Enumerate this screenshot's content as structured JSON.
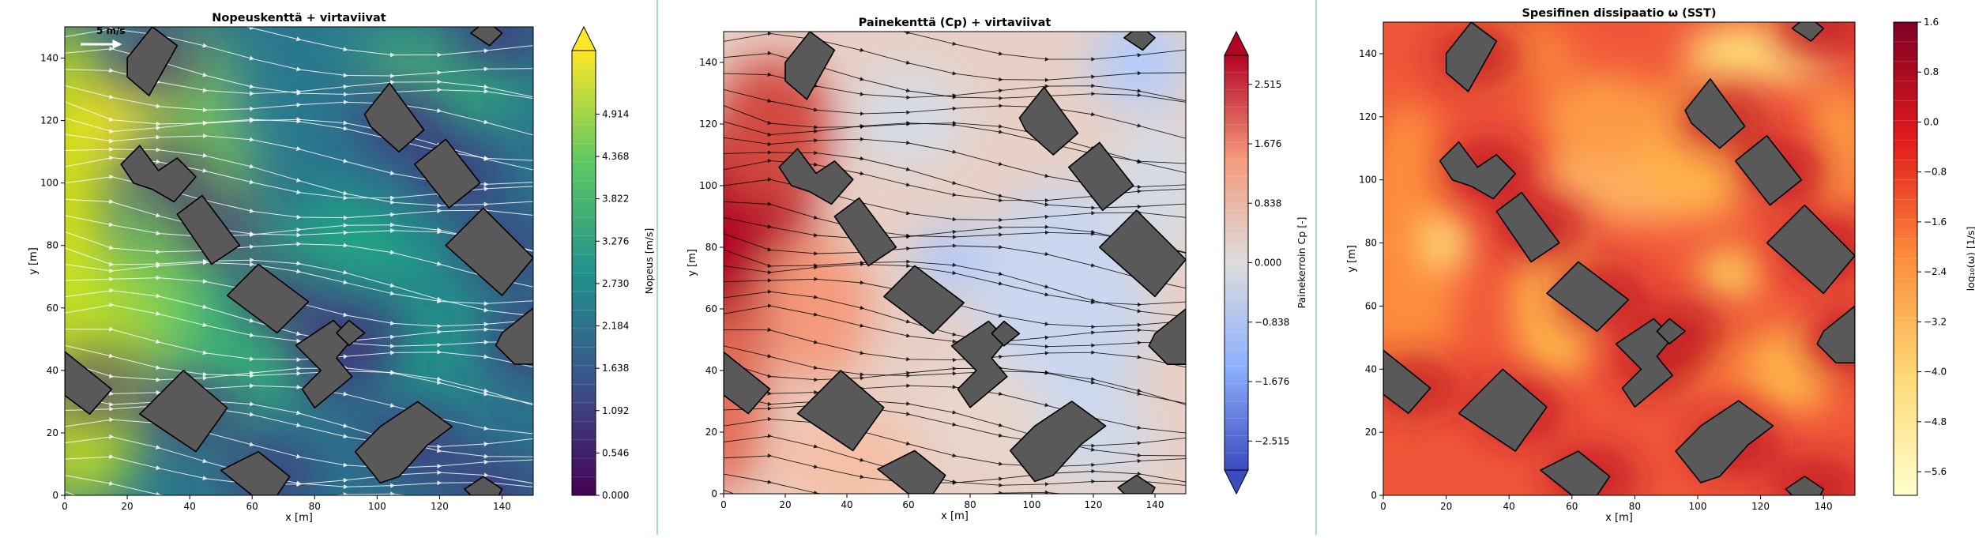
{
  "chart_data": [
    {
      "type": "heatmap",
      "title": "Nopeuskenttä + virtaviivat",
      "xlabel": "x [m]",
      "ylabel": "y [m]",
      "xlim": [
        0,
        150
      ],
      "ylim": [
        0,
        150
      ],
      "x_ticks": [
        0,
        20,
        40,
        60,
        80,
        100,
        120,
        140
      ],
      "y_ticks": [
        0,
        20,
        40,
        60,
        80,
        100,
        120,
        140
      ],
      "colormap": [
        "#440154",
        "#3b528b",
        "#21918c",
        "#5ec962",
        "#fde725"
      ],
      "colorbar_label": "Nopeus [m/s]",
      "colorbar_ticks": [
        "0.000",
        "0.546",
        "1.092",
        "1.638",
        "2.184",
        "2.730",
        "3.276",
        "3.822",
        "4.368",
        "4.914"
      ],
      "colorbar_extend": "max",
      "streamline_color": "#ffffff",
      "scale_arrow_label": "5 m/s"
    },
    {
      "type": "heatmap",
      "title": "Painekenttä (Cp) + virtaviivat",
      "xlabel": "x [m]",
      "ylabel": "y [m]",
      "xlim": [
        0,
        150
      ],
      "ylim": [
        0,
        150
      ],
      "x_ticks": [
        0,
        20,
        40,
        60,
        80,
        100,
        120,
        140
      ],
      "y_ticks": [
        0,
        20,
        40,
        60,
        80,
        100,
        120,
        140
      ],
      "colormap": [
        "#3b4cc0",
        "#8db0fe",
        "#dddcdc",
        "#f49a7b",
        "#b40426"
      ],
      "colorbar_label": "Painekerroin Cp [-]",
      "colorbar_ticks": [
        "−2.515",
        "−1.676",
        "−0.838",
        "0.000",
        "0.838",
        "1.676",
        "2.515"
      ],
      "colorbar_extend": "both",
      "streamline_color": "#000000"
    },
    {
      "type": "heatmap",
      "title": "Spesifinen dissipaatio ω (SST)",
      "xlabel": "x [m]",
      "ylabel": "y [m]",
      "xlim": [
        0,
        150
      ],
      "ylim": [
        0,
        150
      ],
      "x_ticks": [
        0,
        20,
        40,
        60,
        80,
        100,
        120,
        140
      ],
      "y_ticks": [
        0,
        20,
        40,
        60,
        80,
        100,
        120,
        140
      ],
      "colormap": [
        "#ffffcc",
        "#fed976",
        "#fd8d3c",
        "#e31a1c",
        "#800026"
      ],
      "colorbar_label": "log₁₀(ω) [1/s]",
      "colorbar_ticks": [
        "−5.6",
        "−4.8",
        "−4.0",
        "−3.2",
        "−2.4",
        "−1.6",
        "−0.8",
        "0.0",
        "0.8",
        "1.6"
      ],
      "colorbar_extend": "none"
    }
  ],
  "buildings": [
    [
      [
        20,
        140
      ],
      [
        28,
        150
      ],
      [
        36,
        144
      ],
      [
        27,
        128
      ],
      [
        20,
        134
      ]
    ],
    [
      [
        18,
        106
      ],
      [
        24,
        112
      ],
      [
        30,
        104
      ],
      [
        36,
        108
      ],
      [
        42,
        102
      ],
      [
        35,
        94
      ],
      [
        28,
        98
      ],
      [
        22,
        100
      ]
    ],
    [
      [
        36,
        90
      ],
      [
        44,
        96
      ],
      [
        56,
        80
      ],
      [
        47,
        74
      ]
    ],
    [
      [
        52,
        64
      ],
      [
        62,
        74
      ],
      [
        78,
        62
      ],
      [
        68,
        52
      ]
    ],
    [
      [
        74,
        48
      ],
      [
        86,
        56
      ],
      [
        92,
        50
      ],
      [
        87,
        44
      ],
      [
        92,
        38
      ],
      [
        80,
        28
      ],
      [
        76,
        34
      ],
      [
        82,
        40
      ]
    ],
    [
      [
        87,
        52
      ],
      [
        91,
        56
      ],
      [
        96,
        52
      ],
      [
        91,
        48
      ]
    ],
    [
      [
        24,
        26
      ],
      [
        38,
        40
      ],
      [
        52,
        28
      ],
      [
        42,
        14
      ]
    ],
    [
      [
        0,
        46
      ],
      [
        15,
        34
      ],
      [
        8,
        26
      ],
      [
        0,
        32
      ]
    ],
    [
      [
        50,
        8
      ],
      [
        62,
        14
      ],
      [
        72,
        6
      ],
      [
        68,
        0
      ],
      [
        60,
        0
      ]
    ],
    [
      [
        93,
        14
      ],
      [
        101,
        22
      ],
      [
        113,
        30
      ],
      [
        124,
        22
      ],
      [
        116,
        16
      ],
      [
        107,
        6
      ],
      [
        101,
        4
      ]
    ],
    [
      [
        96,
        122
      ],
      [
        104,
        132
      ],
      [
        115,
        117
      ],
      [
        107,
        110
      ],
      [
        98,
        118
      ]
    ],
    [
      [
        112,
        106
      ],
      [
        122,
        114
      ],
      [
        133,
        100
      ],
      [
        123,
        92
      ]
    ],
    [
      [
        122,
        80
      ],
      [
        134,
        92
      ],
      [
        150,
        76
      ],
      [
        140,
        64
      ]
    ],
    [
      [
        140,
        52
      ],
      [
        150,
        60
      ],
      [
        150,
        42
      ],
      [
        144,
        42
      ],
      [
        138,
        48
      ]
    ],
    [
      [
        128,
        2
      ],
      [
        134,
        6
      ],
      [
        140,
        2
      ],
      [
        139,
        0
      ],
      [
        130,
        0
      ]
    ],
    [
      [
        130,
        148
      ],
      [
        135,
        152
      ],
      [
        140,
        148
      ],
      [
        136,
        144
      ]
    ]
  ]
}
